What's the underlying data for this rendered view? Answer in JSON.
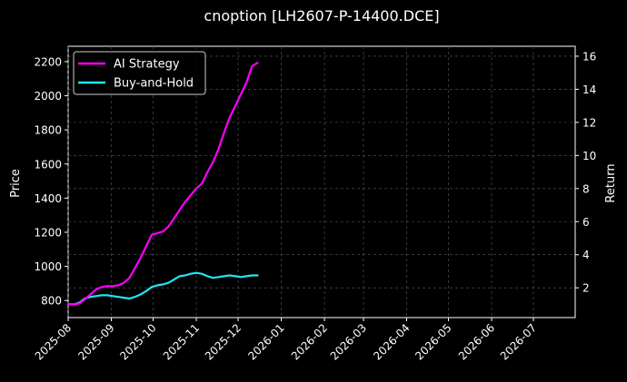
{
  "chart_data": {
    "type": "line",
    "title": "cnoption [LH2607-P-14400.DCE]",
    "ylabel": "Price",
    "y2label": "Return",
    "xlim": [
      "2025-08-01",
      "2026-07-31"
    ],
    "ylim": [
      700,
      2290
    ],
    "y2lim": [
      0.2,
      16.6
    ],
    "x_ticks": [
      "2025-08",
      "2025-09",
      "2025-10",
      "2025-11",
      "2025-12",
      "2026-01",
      "2026-02",
      "2026-03",
      "2026-04",
      "2026-05",
      "2026-06",
      "2026-07"
    ],
    "y_ticks": [
      800,
      1000,
      1200,
      1400,
      1600,
      1800,
      2000,
      2200
    ],
    "y2_ticks": [
      2,
      4,
      6,
      8,
      10,
      12,
      14,
      16
    ],
    "grid": true,
    "legend": "top-left",
    "series": [
      {
        "name": "AI Strategy",
        "axis": "right",
        "color": "#ff00ff",
        "x": [
          "2025-08-01",
          "2025-08-05",
          "2025-08-09",
          "2025-08-13",
          "2025-08-17",
          "2025-08-21",
          "2025-08-25",
          "2025-08-29",
          "2025-09-02",
          "2025-09-06",
          "2025-09-10",
          "2025-09-14",
          "2025-09-18",
          "2025-09-22",
          "2025-09-26",
          "2025-09-30",
          "2025-10-04",
          "2025-10-08",
          "2025-10-12",
          "2025-10-16",
          "2025-10-20",
          "2025-10-24",
          "2025-10-28",
          "2025-11-01",
          "2025-11-05",
          "2025-11-09",
          "2025-11-13",
          "2025-11-17",
          "2025-11-21",
          "2025-11-25",
          "2025-11-29",
          "2025-12-03",
          "2025-12-07",
          "2025-12-11",
          "2025-12-15"
        ],
        "values": [
          1.0,
          1.0,
          1.05,
          1.3,
          1.6,
          1.9,
          2.05,
          2.1,
          2.1,
          2.15,
          2.3,
          2.6,
          3.2,
          3.8,
          4.5,
          5.2,
          5.3,
          5.4,
          5.7,
          6.2,
          6.7,
          7.2,
          7.6,
          8.0,
          8.3,
          9.0,
          9.6,
          10.4,
          11.4,
          12.3,
          13.0,
          13.7,
          14.4,
          15.4,
          15.6
        ]
      },
      {
        "name": "Buy-and-Hold",
        "axis": "right",
        "color": "#22e5f5",
        "x": [
          "2025-08-01",
          "2025-08-05",
          "2025-08-09",
          "2025-08-13",
          "2025-08-17",
          "2025-08-21",
          "2025-08-25",
          "2025-08-29",
          "2025-09-02",
          "2025-09-06",
          "2025-09-10",
          "2025-09-14",
          "2025-09-18",
          "2025-09-22",
          "2025-09-26",
          "2025-09-30",
          "2025-10-04",
          "2025-10-08",
          "2025-10-12",
          "2025-10-16",
          "2025-10-20",
          "2025-10-24",
          "2025-10-28",
          "2025-11-01",
          "2025-11-05",
          "2025-11-09",
          "2025-11-13",
          "2025-11-17",
          "2025-11-21",
          "2025-11-25",
          "2025-11-29",
          "2025-12-03",
          "2025-12-07",
          "2025-12-11",
          "2025-12-15"
        ],
        "values": [
          1.0,
          1.0,
          1.1,
          1.35,
          1.45,
          1.5,
          1.55,
          1.55,
          1.5,
          1.45,
          1.4,
          1.35,
          1.45,
          1.6,
          1.8,
          2.05,
          2.15,
          2.2,
          2.3,
          2.5,
          2.7,
          2.75,
          2.85,
          2.9,
          2.85,
          2.7,
          2.6,
          2.65,
          2.7,
          2.75,
          2.7,
          2.65,
          2.7,
          2.75,
          2.75
        ]
      }
    ]
  }
}
